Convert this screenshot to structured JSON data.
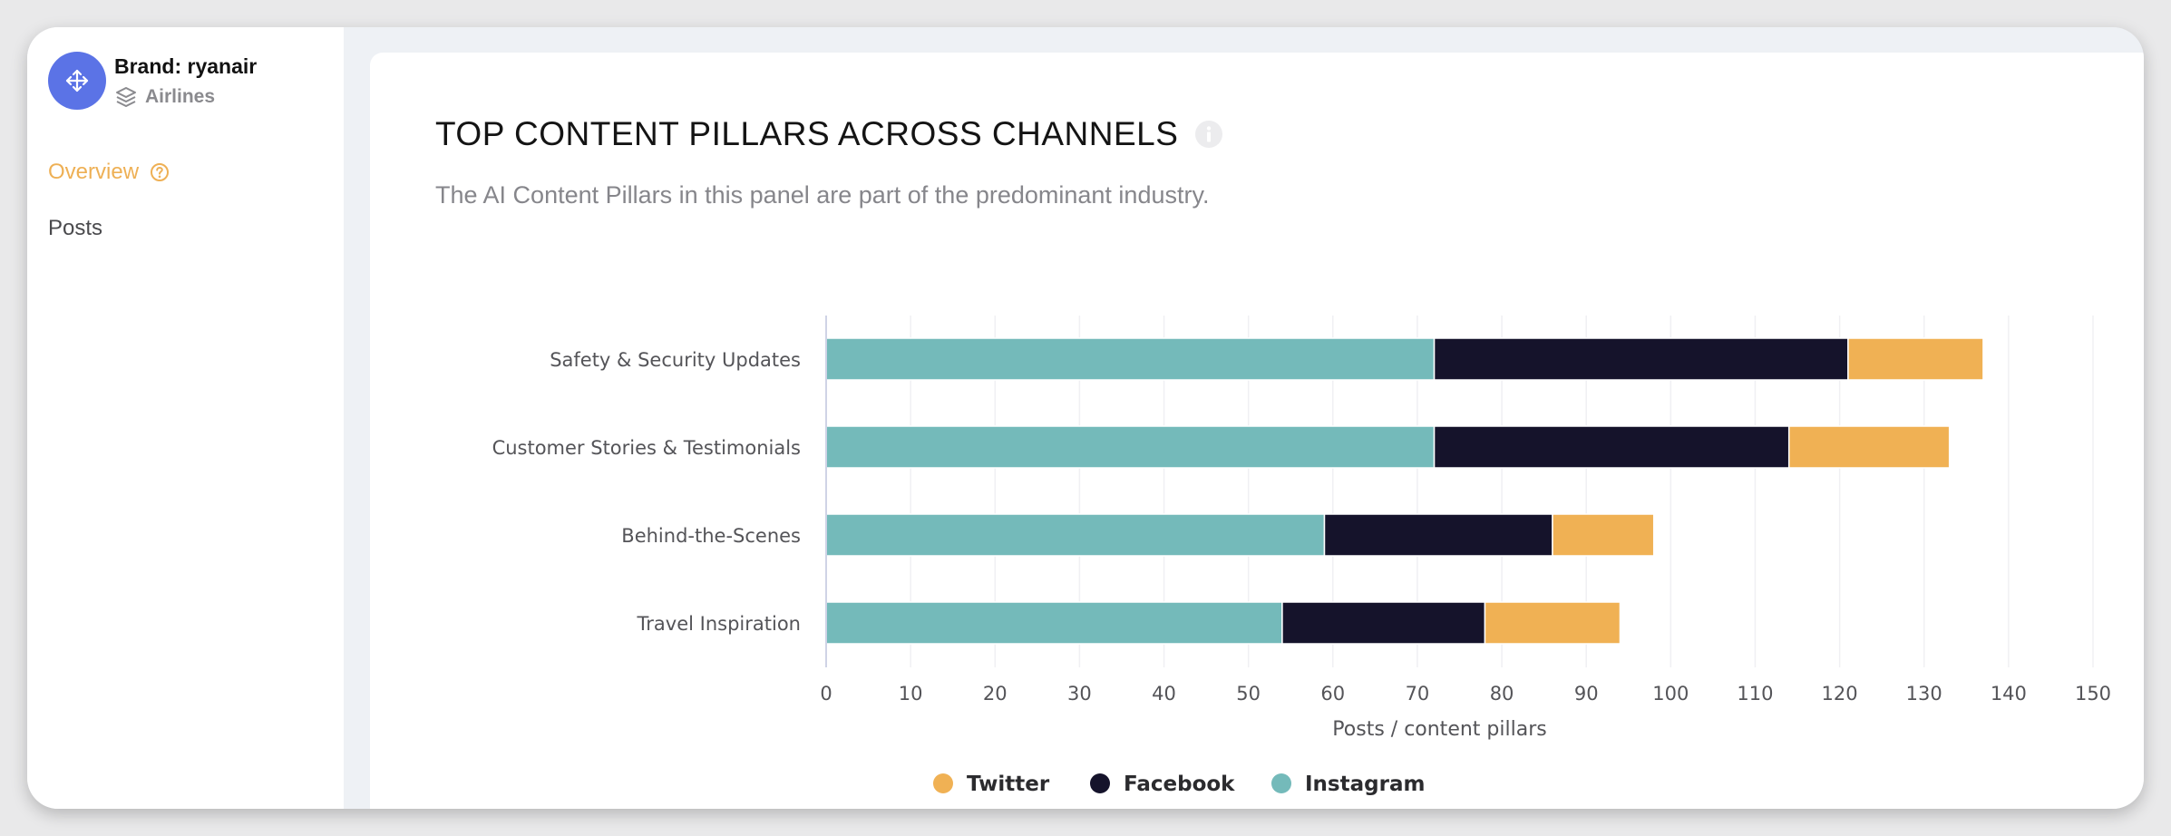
{
  "sidebar": {
    "brand_label": "Brand: ryanair",
    "industry": "Airlines",
    "nav": {
      "overview": "Overview",
      "posts": "Posts"
    }
  },
  "panel": {
    "title": "TOP CONTENT PILLARS ACROSS CHANNELS",
    "subtitle": "The AI Content Pillars in this panel are part of the predominant industry."
  },
  "colors": {
    "accent": "#eeb055",
    "avatar": "#5b73e6",
    "twitter": "#f0b154",
    "facebook": "#15132b",
    "instagram": "#74baba"
  },
  "icons": {
    "avatar": "move-arrows-icon",
    "industry": "layers-icon",
    "overview_help": "question-circle-icon",
    "title_info": "info-circle-icon"
  },
  "chart_data": {
    "type": "bar",
    "orientation": "horizontal",
    "stacked": true,
    "categories": [
      "Safety & Security Updates",
      "Customer Stories & Testimonials",
      "Behind-the-Scenes",
      "Travel Inspiration"
    ],
    "series": [
      {
        "name": "Instagram",
        "values": [
          72,
          72,
          59,
          54
        ]
      },
      {
        "name": "Facebook",
        "values": [
          49,
          42,
          27,
          24
        ]
      },
      {
        "name": "Twitter",
        "values": [
          16,
          19,
          12,
          16
        ]
      }
    ],
    "xlabel": "Posts / content pillars",
    "xlim": [
      0,
      150
    ],
    "xticks": [
      "0",
      "10",
      "20",
      "30",
      "40",
      "50",
      "60",
      "70",
      "80",
      "90",
      "100",
      "110",
      "120",
      "130",
      "140",
      "150"
    ],
    "legend": {
      "position": "bottom-center",
      "order": [
        "Twitter",
        "Facebook",
        "Instagram"
      ]
    },
    "grid": true
  }
}
